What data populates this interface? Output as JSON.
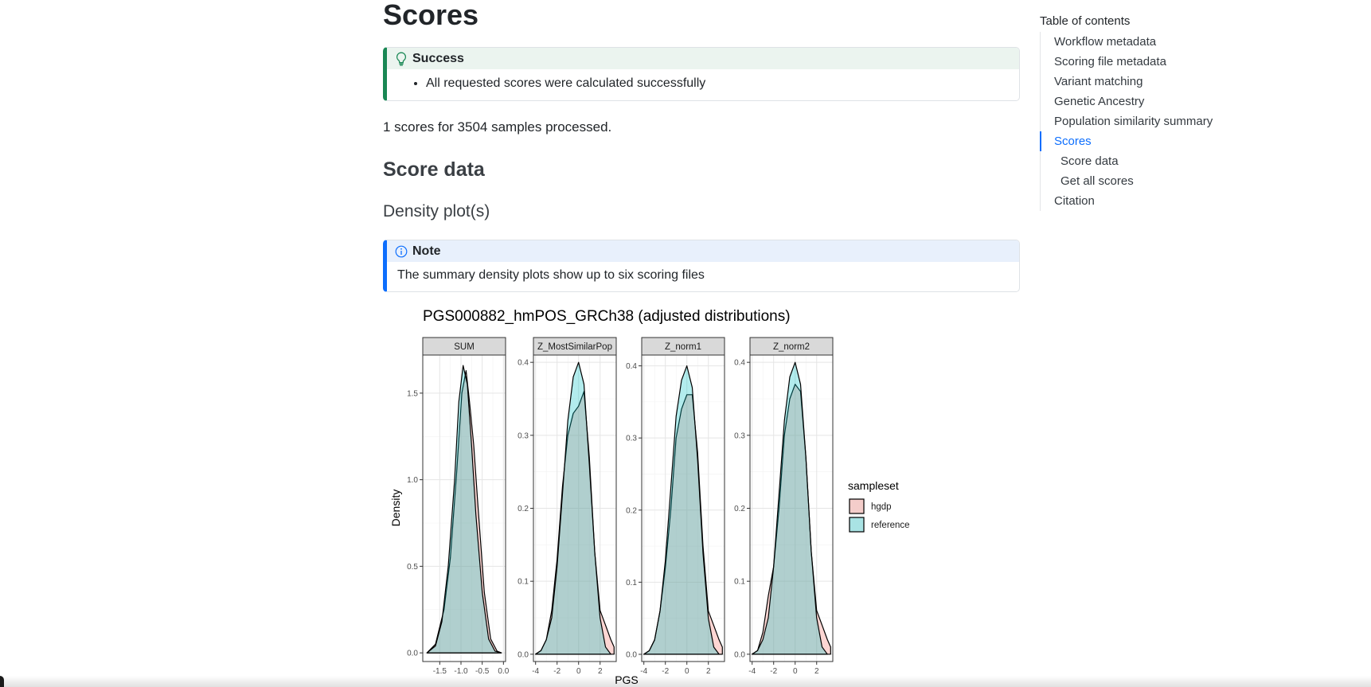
{
  "page": {
    "title": "Scores",
    "success_callout": {
      "title": "Success",
      "icon": "lightbulb-icon",
      "items": [
        "All requested scores were calculated successfully"
      ]
    },
    "summary_text": "1 scores for 3504 samples processed.",
    "section_heading": "Score data",
    "subsection_heading": "Density plot(s)",
    "note_callout": {
      "title": "Note",
      "icon": "info-icon",
      "text": "The summary density plots show up to six scoring files"
    }
  },
  "toc": {
    "title": "Table of contents",
    "items": [
      {
        "label": "Workflow metadata",
        "level": 1,
        "active": false
      },
      {
        "label": "Scoring file metadata",
        "level": 1,
        "active": false
      },
      {
        "label": "Variant matching",
        "level": 1,
        "active": false
      },
      {
        "label": "Genetic Ancestry",
        "level": 1,
        "active": false
      },
      {
        "label": "Population similarity summary",
        "level": 1,
        "active": false
      },
      {
        "label": "Scores",
        "level": 1,
        "active": true
      },
      {
        "label": "Score data",
        "level": 2,
        "active": false
      },
      {
        "label": "Get all scores",
        "level": 2,
        "active": false
      },
      {
        "label": "Citation",
        "level": 1,
        "active": false
      }
    ]
  },
  "colors": {
    "success": "#198754",
    "note": "#0d6efd",
    "toc_active": "#0d6efd",
    "hgdp": "#f8766d",
    "reference": "#00bfc4"
  },
  "chart_data": {
    "type": "area",
    "title": "PGS000882_hmPOS_GRCh38 (adjusted distributions)",
    "xlabel": "PGS",
    "ylabel": "Density",
    "grid": true,
    "legend": {
      "title": "sampleset",
      "position": "right",
      "entries": [
        "hgdp",
        "reference"
      ]
    },
    "panels": [
      {
        "name": "SUM",
        "xlim": [
          -1.9,
          0.05
        ],
        "ylim": [
          -0.05,
          1.72
        ],
        "xticks": [
          -1.5,
          -1.0,
          -0.5,
          0.0
        ],
        "xtick_labels": [
          "-1.5",
          "-1.0",
          "-0.5",
          "0.0"
        ],
        "yticks": [
          0.0,
          0.5,
          1.0,
          1.5
        ],
        "ytick_labels": [
          "0.0",
          "0.5",
          "1.0",
          "1.5"
        ],
        "series": [
          {
            "name": "hgdp",
            "points": [
              [
                -1.8,
                0
              ],
              [
                -1.6,
                0.05
              ],
              [
                -1.4,
                0.25
              ],
              [
                -1.25,
                0.55
              ],
              [
                -1.1,
                1.05
              ],
              [
                -0.98,
                1.5
              ],
              [
                -0.88,
                1.63
              ],
              [
                -0.8,
                1.45
              ],
              [
                -0.7,
                1.2
              ],
              [
                -0.6,
                0.85
              ],
              [
                -0.45,
                0.35
              ],
              [
                -0.3,
                0.08
              ],
              [
                -0.15,
                0.01
              ],
              [
                -0.05,
                0
              ]
            ]
          },
          {
            "name": "reference",
            "points": [
              [
                -1.8,
                0
              ],
              [
                -1.6,
                0.04
              ],
              [
                -1.45,
                0.18
              ],
              [
                -1.3,
                0.5
              ],
              [
                -1.15,
                1.0
              ],
              [
                -1.05,
                1.45
              ],
              [
                -0.95,
                1.66
              ],
              [
                -0.85,
                1.55
              ],
              [
                -0.75,
                1.2
              ],
              [
                -0.65,
                0.8
              ],
              [
                -0.5,
                0.35
              ],
              [
                -0.35,
                0.08
              ],
              [
                -0.2,
                0.01
              ],
              [
                -0.05,
                0
              ]
            ]
          }
        ]
      },
      {
        "name": "Z_MostSimilarPop",
        "xlim": [
          -4.2,
          3.5
        ],
        "ylim": [
          -0.01,
          0.41
        ],
        "xticks": [
          -4,
          -2,
          0,
          2
        ],
        "xtick_labels": [
          "-4",
          "-2",
          "0",
          "2"
        ],
        "yticks": [
          0.0,
          0.1,
          0.2,
          0.3,
          0.4
        ],
        "ytick_labels": [
          "0.0",
          "0.1",
          "0.2",
          "0.3",
          "0.4"
        ],
        "series": [
          {
            "name": "hgdp",
            "points": [
              [
                -4,
                0
              ],
              [
                -3.5,
                0.005
              ],
              [
                -3,
                0.02
              ],
              [
                -2.5,
                0.06
              ],
              [
                -2,
                0.13
              ],
              [
                -1.5,
                0.23
              ],
              [
                -1,
                0.3
              ],
              [
                -0.5,
                0.33
              ],
              [
                0,
                0.34
              ],
              [
                0.5,
                0.36
              ],
              [
                1,
                0.27
              ],
              [
                1.5,
                0.14
              ],
              [
                2,
                0.06
              ],
              [
                2.5,
                0.04
              ],
              [
                3,
                0.02
              ],
              [
                3.3,
                0.01
              ]
            ]
          },
          {
            "name": "reference",
            "points": [
              [
                -4,
                0
              ],
              [
                -3.5,
                0.005
              ],
              [
                -3,
                0.02
              ],
              [
                -2.5,
                0.05
              ],
              [
                -2,
                0.12
              ],
              [
                -1.5,
                0.22
              ],
              [
                -1,
                0.32
              ],
              [
                -0.5,
                0.38
              ],
              [
                0,
                0.4
              ],
              [
                0.5,
                0.37
              ],
              [
                1,
                0.26
              ],
              [
                1.5,
                0.14
              ],
              [
                2,
                0.05
              ],
              [
                2.5,
                0.01
              ],
              [
                3,
                0
              ]
            ]
          }
        ]
      },
      {
        "name": "Z_norm1",
        "xlim": [
          -4.2,
          3.5
        ],
        "ylim": [
          -0.01,
          0.415
        ],
        "xticks": [
          -4,
          -2,
          0,
          2
        ],
        "xtick_labels": [
          "-4",
          "-2",
          "0",
          "2"
        ],
        "yticks": [
          0.0,
          0.1,
          0.2,
          0.3,
          0.4
        ],
        "ytick_labels": [
          "0.0",
          "0.1",
          "0.2",
          "0.3",
          "0.4"
        ],
        "series": [
          {
            "name": "hgdp",
            "points": [
              [
                -4,
                0
              ],
              [
                -3.5,
                0.005
              ],
              [
                -3,
                0.02
              ],
              [
                -2.5,
                0.06
              ],
              [
                -2,
                0.12
              ],
              [
                -1.5,
                0.2
              ],
              [
                -1,
                0.3
              ],
              [
                -0.5,
                0.34
              ],
              [
                0,
                0.36
              ],
              [
                0.5,
                0.36
              ],
              [
                1,
                0.28
              ],
              [
                1.5,
                0.15
              ],
              [
                2,
                0.06
              ],
              [
                2.5,
                0.04
              ],
              [
                3,
                0.02
              ],
              [
                3.3,
                0.01
              ]
            ]
          },
          {
            "name": "reference",
            "points": [
              [
                -4,
                0
              ],
              [
                -3.5,
                0.005
              ],
              [
                -3,
                0.02
              ],
              [
                -2.5,
                0.06
              ],
              [
                -2,
                0.13
              ],
              [
                -1.5,
                0.23
              ],
              [
                -1,
                0.33
              ],
              [
                -0.5,
                0.38
              ],
              [
                0,
                0.4
              ],
              [
                0.5,
                0.37
              ],
              [
                1,
                0.27
              ],
              [
                1.5,
                0.14
              ],
              [
                2,
                0.05
              ],
              [
                2.5,
                0.01
              ],
              [
                3,
                0
              ]
            ]
          }
        ]
      },
      {
        "name": "Z_norm2",
        "xlim": [
          -4.2,
          3.5
        ],
        "ylim": [
          -0.01,
          0.41
        ],
        "xticks": [
          -4,
          -2,
          0,
          2
        ],
        "xtick_labels": [
          "-4",
          "-2",
          "0",
          "2"
        ],
        "yticks": [
          0.0,
          0.1,
          0.2,
          0.3,
          0.4
        ],
        "ytick_labels": [
          "0.0",
          "0.1",
          "0.2",
          "0.3",
          "0.4"
        ],
        "series": [
          {
            "name": "hgdp",
            "points": [
              [
                -4,
                0
              ],
              [
                -3.5,
                0.005
              ],
              [
                -3,
                0.03
              ],
              [
                -2.5,
                0.08
              ],
              [
                -2,
                0.12
              ],
              [
                -1.5,
                0.2
              ],
              [
                -1,
                0.3
              ],
              [
                -0.5,
                0.35
              ],
              [
                0,
                0.37
              ],
              [
                0.5,
                0.36
              ],
              [
                1,
                0.27
              ],
              [
                1.5,
                0.14
              ],
              [
                2,
                0.06
              ],
              [
                2.5,
                0.04
              ],
              [
                3,
                0.02
              ],
              [
                3.3,
                0.01
              ]
            ]
          },
          {
            "name": "reference",
            "points": [
              [
                -4,
                0
              ],
              [
                -3.5,
                0.005
              ],
              [
                -3,
                0.02
              ],
              [
                -2.5,
                0.05
              ],
              [
                -2,
                0.12
              ],
              [
                -1.5,
                0.22
              ],
              [
                -1,
                0.32
              ],
              [
                -0.5,
                0.38
              ],
              [
                0,
                0.4
              ],
              [
                0.5,
                0.37
              ],
              [
                1,
                0.27
              ],
              [
                1.5,
                0.14
              ],
              [
                2,
                0.05
              ],
              [
                2.5,
                0.01
              ],
              [
                3,
                0
              ]
            ]
          }
        ]
      }
    ]
  }
}
